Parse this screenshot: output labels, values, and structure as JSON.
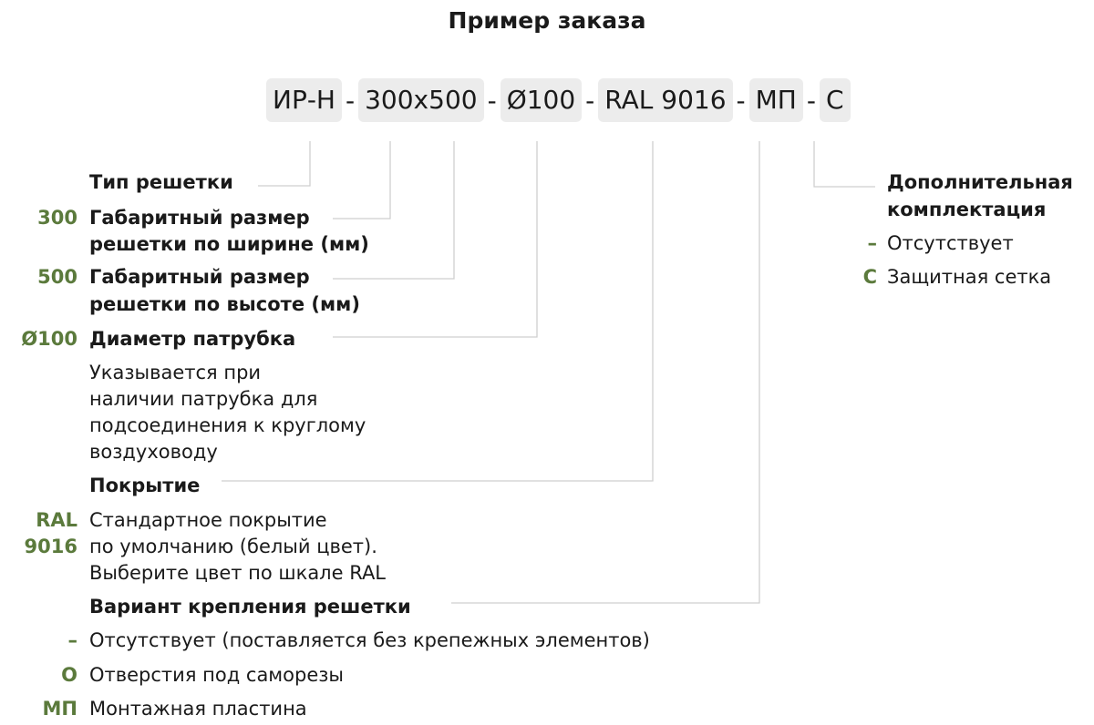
{
  "title": "Пример заказа",
  "accent_color": "#5b7a3c",
  "code": {
    "segments": [
      "ИР-Н",
      "300x500",
      "Ø100",
      "RAL 9016",
      "МП",
      "С"
    ],
    "separator": "-"
  },
  "left": {
    "type": {
      "title": "Тип решетки"
    },
    "width": {
      "key": "300",
      "title_lines": [
        "Габаритный размер",
        "решетки по ширине (мм)"
      ]
    },
    "height": {
      "key": "500",
      "title_lines": [
        "Габаритный размер",
        "решетки по высоте (мм)"
      ]
    },
    "diameter": {
      "key": "Ø100",
      "title": "Диаметр патрубка",
      "desc_lines": [
        "Указывается при",
        "наличии патрубка для",
        "подсоединения к круглому",
        "воздуховоду"
      ]
    },
    "coating": {
      "title": "Покрытие",
      "key_lines": [
        "RAL",
        "9016"
      ],
      "desc_lines": [
        "Стандартное покрытие",
        "по умолчанию (белый цвет).",
        "Выберите цвет по шкале RAL"
      ]
    },
    "mount": {
      "title": "Вариант крепления решетки",
      "options": [
        {
          "key": "–",
          "text": "Отсутствует (поставляется без крепежных элементов)"
        },
        {
          "key": "О",
          "text": "Отверстия под саморезы"
        },
        {
          "key": "МП",
          "text": "Монтажная пластина"
        }
      ]
    }
  },
  "right": {
    "title_lines": [
      "Дополнительная",
      "комплектация"
    ],
    "options": [
      {
        "key": "–",
        "text": "Отсутствует"
      },
      {
        "key": "С",
        "text": "Защитная сетка"
      }
    ]
  }
}
